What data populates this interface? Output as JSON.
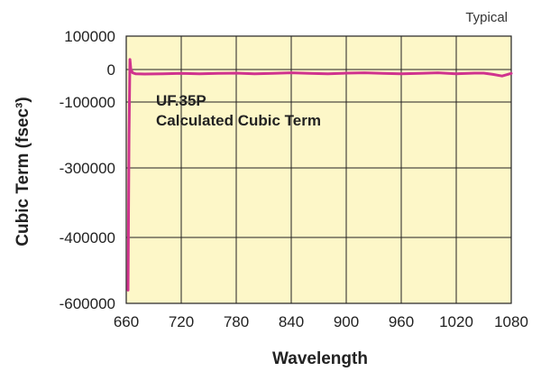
{
  "chart_data": {
    "type": "line",
    "title": "",
    "note": "Typical",
    "xlabel": "Wavelength",
    "ylabel": "Cubic Term (fsec³)",
    "xlim": [
      660,
      1080
    ],
    "y_ticks": [
      {
        "label": "100000",
        "value": 100000
      },
      {
        "label": "0",
        "value": 0
      },
      {
        "label": "-100000",
        "value": -100000
      },
      {
        "label": "-300000",
        "value": -300000
      },
      {
        "label": "-400000",
        "value": -400000
      },
      {
        "label": "-600000",
        "value": -600000
      }
    ],
    "x_ticks": [
      660,
      720,
      780,
      840,
      900,
      960,
      1020,
      1080
    ],
    "grid": true,
    "annotation": [
      "UF.35P",
      "Calculated Cubic Term"
    ],
    "colors": {
      "line": "#d0338e",
      "plot_bg": "#fdf7c8",
      "grid": "#222222"
    },
    "series": [
      {
        "x": [
          662,
          663,
          664,
          665,
          667,
          670,
          680,
          700,
          720,
          740,
          760,
          780,
          800,
          820,
          840,
          860,
          880,
          900,
          920,
          940,
          960,
          980,
          1000,
          1020,
          1040,
          1050,
          1060,
          1070,
          1080
        ],
        "y": [
          -560000,
          -200000,
          30000,
          0,
          -10000,
          -13000,
          -14000,
          -13000,
          -12000,
          -13000,
          -12000,
          -11000,
          -13000,
          -12000,
          -10000,
          -12000,
          -13000,
          -11000,
          -10000,
          -12000,
          -13000,
          -12000,
          -10000,
          -13000,
          -11000,
          -11000,
          -15000,
          -20000,
          -12000
        ]
      }
    ]
  }
}
